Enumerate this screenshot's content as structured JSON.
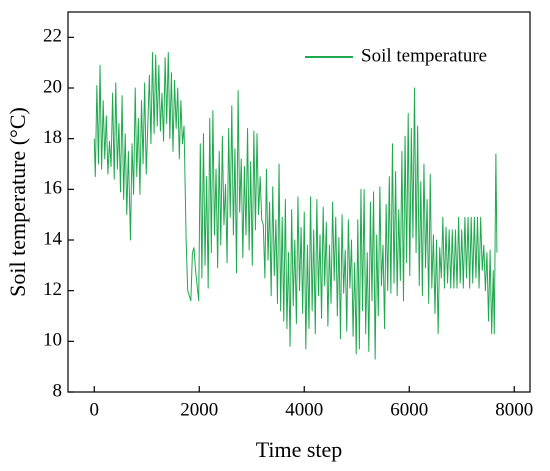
{
  "chart_data": {
    "type": "line",
    "xlabel": "Time step",
    "ylabel": "Soil temperature (°C)",
    "x": [
      0,
      20,
      50,
      80,
      110,
      140,
      170,
      200,
      230,
      260,
      290,
      320,
      350,
      380,
      410,
      440,
      470,
      500,
      530,
      560,
      590,
      620,
      650,
      690,
      720,
      750,
      780,
      810,
      840,
      870,
      900,
      930,
      960,
      990,
      1020,
      1050,
      1080,
      1110,
      1140,
      1170,
      1200,
      1230,
      1260,
      1290,
      1320,
      1350,
      1380,
      1410,
      1440,
      1470,
      1500,
      1530,
      1560,
      1590,
      1620,
      1650,
      1680,
      1710,
      1750,
      1780,
      1810,
      1840,
      1870,
      1900,
      1930,
      1960,
      1990,
      2020,
      2050,
      2080,
      2110,
      2140,
      2170,
      2200,
      2230,
      2260,
      2290,
      2320,
      2350,
      2380,
      2410,
      2440,
      2470,
      2500,
      2530,
      2560,
      2590,
      2620,
      2650,
      2680,
      2710,
      2740,
      2770,
      2800,
      2830,
      2860,
      2890,
      2920,
      2950,
      2980,
      3010,
      3040,
      3070,
      3100,
      3130,
      3160,
      3190,
      3220,
      3250,
      3280,
      3310,
      3340,
      3370,
      3400,
      3430,
      3460,
      3490,
      3520,
      3550,
      3580,
      3610,
      3640,
      3670,
      3700,
      3730,
      3760,
      3790,
      3820,
      3850,
      3880,
      3910,
      3940,
      3970,
      4000,
      4030,
      4060,
      4090,
      4120,
      4150,
      4180,
      4210,
      4240,
      4270,
      4300,
      4330,
      4360,
      4390,
      4420,
      4450,
      4480,
      4510,
      4540,
      4570,
      4600,
      4630,
      4660,
      4690,
      4720,
      4750,
      4780,
      4810,
      4840,
      4870,
      4900,
      4930,
      4960,
      4990,
      5020,
      5050,
      5080,
      5110,
      5140,
      5170,
      5200,
      5230,
      5260,
      5290,
      5320,
      5350,
      5380,
      5410,
      5440,
      5470,
      5500,
      5530,
      5560,
      5590,
      5620,
      5650,
      5680,
      5710,
      5740,
      5770,
      5800,
      5830,
      5860,
      5890,
      5920,
      5950,
      5980,
      6010,
      6040,
      6070,
      6100,
      6130,
      6160,
      6190,
      6220,
      6250,
      6280,
      6310,
      6340,
      6370,
      6400,
      6430,
      6460,
      6490,
      6520,
      6550,
      6580,
      6610,
      6640,
      6670,
      6700,
      6730,
      6760,
      6790,
      6820,
      6850,
      6880,
      6910,
      6940,
      6970,
      7000,
      7030,
      7060,
      7090,
      7120,
      7150,
      7180,
      7210,
      7240,
      7270,
      7300,
      7330,
      7360,
      7390,
      7420,
      7450,
      7480,
      7510,
      7540,
      7570,
      7600,
      7620,
      7650,
      7670
    ],
    "series": [
      {
        "name": "Soil temperature",
        "color": "#20a84f",
        "values": [
          18,
          16.5,
          20.1,
          17,
          20.9,
          16.8,
          19.5,
          17.2,
          18.9,
          16.6,
          17.9,
          16.9,
          19.8,
          16.4,
          20.2,
          16.8,
          18.6,
          15.9,
          19.7,
          15.6,
          18.2,
          15,
          17.5,
          14,
          17.8,
          15.8,
          20,
          16.5,
          18.8,
          15.8,
          19.5,
          17,
          20.2,
          16.6,
          18.5,
          20.5,
          17.8,
          21.4,
          18.2,
          21.3,
          18.5,
          20.9,
          18.3,
          19.8,
          17.9,
          21.2,
          18.6,
          21.4,
          18,
          20.6,
          17.5,
          20.3,
          18.4,
          20,
          17.2,
          19.5,
          17.8,
          18.5,
          14,
          12,
          11.8,
          11.6,
          13.5,
          13.7,
          12.8,
          12.2,
          11.6,
          17.8,
          12.5,
          18.2,
          13,
          16.5,
          12.1,
          18.8,
          13.5,
          19.1,
          14.2,
          16.8,
          12.9,
          17.5,
          13.8,
          18.1,
          14.6,
          16.2,
          13.1,
          18.4,
          14.9,
          19.3,
          14.2,
          17.6,
          12.7,
          19.9,
          15.1,
          17.2,
          13.3,
          16.9,
          14.2,
          18.4,
          13.6,
          17.1,
          13,
          18.3,
          14.4,
          18.2,
          15,
          16.5,
          14.8,
          14.6,
          12.5,
          16.8,
          13.2,
          15.5,
          11.8,
          16.1,
          12.6,
          14.8,
          11.5,
          17,
          11.2,
          14.9,
          10.8,
          15.6,
          10.5,
          13.5,
          9.8,
          15.2,
          11.4,
          14,
          10.7,
          15.7,
          12,
          14.5,
          11.1,
          15.1,
          9.7,
          13.8,
          10.5,
          15.7,
          11.2,
          14.4,
          10.3,
          15.6,
          11.8,
          14.2,
          10.9,
          15.3,
          12.2,
          14.7,
          10.6,
          13.8,
          11.5,
          15.5,
          12.4,
          14.9,
          11,
          14.1,
          10.1,
          15,
          11.9,
          13.6,
          10.4,
          14.8,
          12.1,
          14,
          10.2,
          13.1,
          9.5,
          14.8,
          9.7,
          16,
          11.2,
          16,
          10.3,
          13.5,
          9.6,
          15.5,
          11.6,
          15.9,
          9.3,
          14.2,
          11,
          16.1,
          12.2,
          13.8,
          10.5,
          15.4,
          12,
          16.5,
          11.9,
          17.8,
          12.3,
          16.7,
          11.8,
          15.2,
          12.4,
          17.5,
          11.6,
          18.1,
          13.1,
          19,
          12.6,
          18.4,
          14.1,
          20,
          13.5,
          18.5,
          12.2,
          16.3,
          11.8,
          17,
          12.9,
          15.6,
          11.5,
          16.6,
          12.1,
          14.2,
          11.1,
          14,
          10.3,
          13.7,
          12.5,
          14.9,
          12.1,
          14.5,
          12.3,
          14.4,
          12.1,
          14.4,
          12.1,
          14.4,
          12.1,
          14.9,
          12.3,
          14.4,
          12.1,
          14.9,
          12.5,
          14.9,
          12.1,
          14.9,
          12.3,
          14.9,
          12.5,
          14.9,
          12.1,
          14.9,
          12.8,
          13.8,
          12,
          13.5,
          10.8,
          13.6,
          10.3,
          12.8,
          10.3,
          17.4,
          13.5
        ]
      }
    ],
    "xlim": [
      -500,
      8300
    ],
    "xticks": [
      0,
      2000,
      4000,
      6000,
      8000
    ],
    "ylim": [
      8,
      23
    ],
    "yticks": [
      8,
      10,
      12,
      14,
      16,
      18,
      20,
      22
    ],
    "legend": "upper right"
  }
}
